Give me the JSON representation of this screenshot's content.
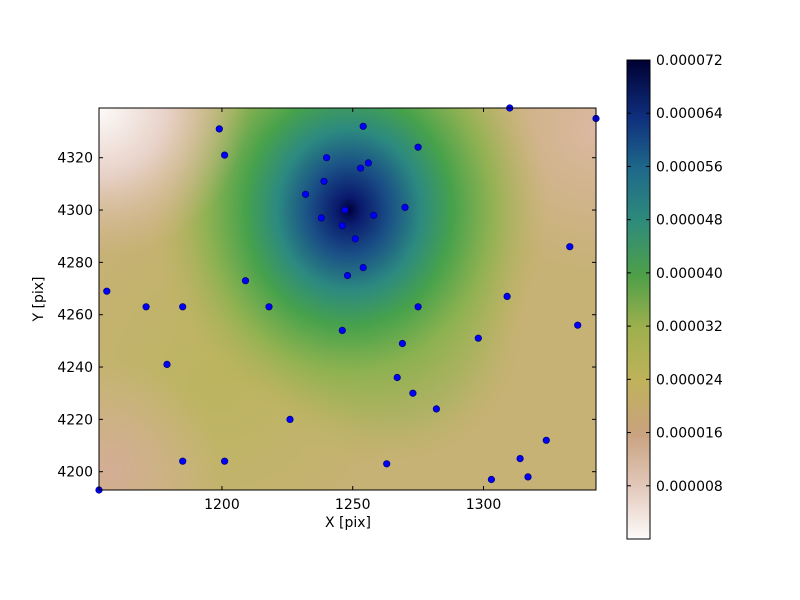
{
  "chart_data": {
    "type": "scatter",
    "title": "",
    "xlabel": "X [pix]",
    "ylabel": "Y [pix]",
    "xlim": [
      1153,
      1343
    ],
    "ylim": [
      4193,
      4339
    ],
    "grid": false,
    "x_ticks": [
      1200,
      1250,
      1300
    ],
    "x_tick_labels": [
      "1200",
      "1250",
      "1300"
    ],
    "y_ticks": [
      4200,
      4220,
      4240,
      4260,
      4280,
      4300,
      4320
    ],
    "y_tick_labels": [
      "4200",
      "4220",
      "4240",
      "4260",
      "4280",
      "4300",
      "4320"
    ],
    "background": {
      "type": "heatmap",
      "description_field": "interpolated density surface",
      "peak": {
        "x": 1250,
        "y": 4300,
        "value": 7.2e-05
      }
    },
    "colorbar": {
      "colormap": "gist_earth_r",
      "range": [
        0.0,
        7.2e-05
      ],
      "ticks": [
        8e-06,
        1.6e-05,
        2.4e-05,
        3.2e-05,
        4e-05,
        4.8e-05,
        5.6e-05,
        6.4e-05,
        7.2e-05
      ],
      "tick_labels": [
        "0.000008",
        "0.000016",
        "0.000024",
        "0.000032",
        "0.000040",
        "0.000048",
        "0.000056",
        "0.000064",
        "0.000072"
      ]
    },
    "marker_color": "#0000ff",
    "marker_edge_color": "#000080",
    "points": [
      {
        "x": 1153,
        "y": 4193
      },
      {
        "x": 1156,
        "y": 4269
      },
      {
        "x": 1171,
        "y": 4263
      },
      {
        "x": 1179,
        "y": 4241
      },
      {
        "x": 1185,
        "y": 4263
      },
      {
        "x": 1185,
        "y": 4204
      },
      {
        "x": 1199,
        "y": 4331
      },
      {
        "x": 1201,
        "y": 4321
      },
      {
        "x": 1201,
        "y": 4204
      },
      {
        "x": 1209,
        "y": 4273
      },
      {
        "x": 1218,
        "y": 4263
      },
      {
        "x": 1226,
        "y": 4220
      },
      {
        "x": 1232,
        "y": 4306
      },
      {
        "x": 1238,
        "y": 4297
      },
      {
        "x": 1239,
        "y": 4311
      },
      {
        "x": 1240,
        "y": 4320
      },
      {
        "x": 1246,
        "y": 4294
      },
      {
        "x": 1247,
        "y": 4300
      },
      {
        "x": 1246,
        "y": 4254
      },
      {
        "x": 1248,
        "y": 4275
      },
      {
        "x": 1251,
        "y": 4289
      },
      {
        "x": 1253,
        "y": 4316
      },
      {
        "x": 1254,
        "y": 4332
      },
      {
        "x": 1254,
        "y": 4278
      },
      {
        "x": 1256,
        "y": 4318
      },
      {
        "x": 1258,
        "y": 4298
      },
      {
        "x": 1263,
        "y": 4203
      },
      {
        "x": 1267,
        "y": 4236
      },
      {
        "x": 1269,
        "y": 4249
      },
      {
        "x": 1270,
        "y": 4301
      },
      {
        "x": 1273,
        "y": 4230
      },
      {
        "x": 1275,
        "y": 4324
      },
      {
        "x": 1275,
        "y": 4263
      },
      {
        "x": 1282,
        "y": 4224
      },
      {
        "x": 1298,
        "y": 4251
      },
      {
        "x": 1303,
        "y": 4197
      },
      {
        "x": 1309,
        "y": 4267
      },
      {
        "x": 1310,
        "y": 4339
      },
      {
        "x": 1314,
        "y": 4205
      },
      {
        "x": 1317,
        "y": 4198
      },
      {
        "x": 1324,
        "y": 4212
      },
      {
        "x": 1333,
        "y": 4286
      },
      {
        "x": 1336,
        "y": 4256
      },
      {
        "x": 1343,
        "y": 4335
      }
    ]
  }
}
